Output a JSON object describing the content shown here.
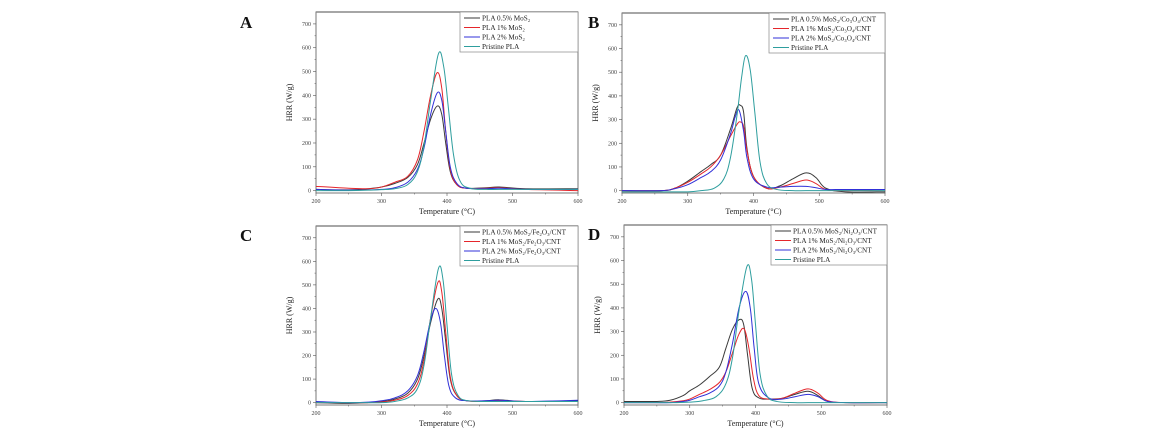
{
  "figure": {
    "x_axis_label": "Temperature (°C)",
    "y_axis_label": "HRR (W/g)"
  },
  "colors": {
    "black": "#3a3a3a",
    "red": "#e5262b",
    "blue": "#3030d8",
    "teal": "#2e9e9e"
  },
  "chart_data": [
    {
      "type": "line",
      "panel": "A",
      "title": "A",
      "xlabel": "Temperature (°C)",
      "ylabel": "HRR (W/g)",
      "xlim": [
        200,
        600
      ],
      "ylim": [
        -10,
        750
      ],
      "xticks": [
        200,
        300,
        400,
        500,
        600
      ],
      "yticks": [
        0,
        100,
        200,
        300,
        400,
        500,
        600,
        700
      ],
      "grid": false,
      "legend_position": "top-right",
      "series": [
        {
          "name": "PLA 0.5% MoS₂",
          "color": "black",
          "x": [
            200,
            250,
            280,
            300,
            320,
            340,
            355,
            365,
            375,
            385,
            392,
            398,
            405,
            415,
            430,
            460,
            480,
            520,
            600
          ],
          "y": [
            5,
            3,
            8,
            15,
            30,
            55,
            110,
            200,
            300,
            355,
            320,
            200,
            80,
            25,
            10,
            12,
            15,
            8,
            8
          ]
        },
        {
          "name": "PLA 1% MoS₂",
          "color": "red",
          "x": [
            200,
            250,
            280,
            300,
            320,
            340,
            355,
            365,
            375,
            385,
            392,
            398,
            405,
            415,
            430,
            460,
            480,
            520,
            600
          ],
          "y": [
            18,
            10,
            8,
            15,
            35,
            60,
            130,
            250,
            400,
            495,
            430,
            250,
            90,
            25,
            10,
            10,
            12,
            5,
            0
          ]
        },
        {
          "name": "PLA 2% MoS₂",
          "color": "blue",
          "x": [
            200,
            250,
            280,
            300,
            320,
            340,
            355,
            365,
            375,
            385,
            392,
            398,
            405,
            415,
            430,
            460,
            480,
            520,
            600
          ],
          "y": [
            5,
            2,
            3,
            5,
            12,
            35,
            90,
            180,
            320,
            410,
            380,
            250,
            100,
            30,
            10,
            8,
            10,
            5,
            5
          ]
        },
        {
          "name": "Pristine PLA",
          "color": "teal",
          "x": [
            200,
            250,
            280,
            300,
            320,
            340,
            355,
            365,
            375,
            387,
            395,
            402,
            410,
            420,
            435,
            460,
            480,
            520,
            600
          ],
          "y": [
            0,
            0,
            2,
            4,
            8,
            25,
            80,
            190,
            380,
            575,
            520,
            350,
            150,
            40,
            10,
            5,
            5,
            5,
            5
          ]
        }
      ]
    },
    {
      "type": "line",
      "panel": "B",
      "title": "B",
      "xlabel": "Temperature (°C)",
      "ylabel": "HRR (W/g)",
      "xlim": [
        200,
        600
      ],
      "ylim": [
        -10,
        750
      ],
      "xticks": [
        200,
        300,
        400,
        500,
        600
      ],
      "yticks": [
        0,
        100,
        200,
        300,
        400,
        500,
        600,
        700
      ],
      "grid": false,
      "legend_position": "top-right",
      "series": [
        {
          "name": "PLA 0.5% MoS₂/Co₃O₄/CNT",
          "color": "black",
          "x": [
            200,
            260,
            280,
            300,
            320,
            335,
            350,
            365,
            375,
            380,
            385,
            390,
            400,
            420,
            440,
            460,
            480,
            495,
            510,
            540,
            600
          ],
          "y": [
            0,
            0,
            10,
            40,
            80,
            110,
            150,
            260,
            350,
            360,
            330,
            180,
            60,
            10,
            20,
            50,
            75,
            55,
            10,
            -5,
            -5
          ]
        },
        {
          "name": "PLA 1% MoS₂/Co₃O₄/CNT",
          "color": "red",
          "x": [
            200,
            260,
            280,
            300,
            320,
            335,
            350,
            365,
            375,
            380,
            385,
            390,
            400,
            420,
            440,
            460,
            480,
            495,
            510,
            540,
            600
          ],
          "y": [
            0,
            0,
            10,
            35,
            70,
            100,
            150,
            230,
            280,
            290,
            270,
            170,
            60,
            10,
            15,
            30,
            45,
            30,
            5,
            0,
            5
          ]
        },
        {
          "name": "PLA 2% MoS₂/Co₃O₄/CNT",
          "color": "blue",
          "x": [
            200,
            260,
            280,
            300,
            320,
            335,
            350,
            365,
            372,
            378,
            385,
            390,
            400,
            420,
            440,
            460,
            480,
            495,
            510,
            540,
            600
          ],
          "y": [
            0,
            0,
            8,
            25,
            55,
            80,
            130,
            240,
            310,
            340,
            250,
            140,
            50,
            15,
            15,
            18,
            18,
            12,
            5,
            5,
            5
          ]
        },
        {
          "name": "Pristine PLA",
          "color": "teal",
          "x": [
            200,
            260,
            300,
            320,
            340,
            355,
            365,
            375,
            382,
            388,
            395,
            402,
            410,
            420,
            435,
            460,
            480,
            520,
            600
          ],
          "y": [
            -5,
            -5,
            -5,
            0,
            10,
            50,
            140,
            320,
            480,
            570,
            510,
            330,
            120,
            30,
            5,
            0,
            0,
            0,
            0
          ]
        }
      ]
    },
    {
      "type": "line",
      "panel": "C",
      "title": "C",
      "xlabel": "Temperature (°C)",
      "ylabel": "HRR (W/g)",
      "xlim": [
        200,
        600
      ],
      "ylim": [
        -10,
        750
      ],
      "xticks": [
        200,
        300,
        400,
        500,
        600
      ],
      "yticks": [
        0,
        100,
        200,
        300,
        400,
        500,
        600,
        700
      ],
      "grid": false,
      "legend_position": "top-right",
      "series": [
        {
          "name": "PLA 0.5% MoS₂/Fe₂O₃/CNT",
          "color": "black",
          "x": [
            200,
            250,
            280,
            300,
            320,
            340,
            355,
            365,
            375,
            386,
            392,
            398,
            405,
            415,
            430,
            460,
            480,
            520,
            600
          ],
          "y": [
            0,
            -3,
            0,
            5,
            15,
            40,
            100,
            200,
            340,
            440,
            400,
            260,
            100,
            30,
            8,
            8,
            12,
            5,
            8
          ]
        },
        {
          "name": "PLA 1% MoS₂/Fe₂O₃/CNT",
          "color": "red",
          "x": [
            200,
            250,
            280,
            300,
            320,
            340,
            355,
            365,
            375,
            386,
            392,
            398,
            405,
            415,
            430,
            460,
            480,
            520,
            600
          ],
          "y": [
            0,
            0,
            0,
            3,
            10,
            30,
            80,
            180,
            360,
            510,
            470,
            300,
            110,
            30,
            8,
            5,
            8,
            5,
            5
          ]
        },
        {
          "name": "PLA 2% MoS₂/Fe₂O₃/CNT",
          "color": "blue",
          "x": [
            200,
            250,
            280,
            300,
            320,
            340,
            355,
            365,
            375,
            383,
            390,
            396,
            403,
            413,
            430,
            460,
            480,
            520,
            600
          ],
          "y": [
            5,
            0,
            2,
            8,
            20,
            50,
            115,
            220,
            350,
            400,
            340,
            200,
            70,
            20,
            8,
            8,
            10,
            5,
            10
          ]
        },
        {
          "name": "Pristine PLA",
          "color": "teal",
          "x": [
            200,
            250,
            280,
            300,
            320,
            340,
            355,
            365,
            375,
            387,
            394,
            400,
            407,
            417,
            432,
            460,
            480,
            520,
            600
          ],
          "y": [
            0,
            0,
            0,
            0,
            5,
            20,
            60,
            160,
            360,
            570,
            520,
            330,
            120,
            30,
            8,
            5,
            5,
            5,
            5
          ]
        }
      ]
    },
    {
      "type": "line",
      "panel": "D",
      "title": "D",
      "xlabel": "Temperature (°C)",
      "ylabel": "HRR (W/g)",
      "xlim": [
        200,
        600
      ],
      "ylim": [
        -10,
        750
      ],
      "xticks": [
        200,
        300,
        400,
        500,
        600
      ],
      "yticks": [
        0,
        100,
        200,
        300,
        400,
        500,
        600,
        700
      ],
      "grid": false,
      "legend_position": "top-right",
      "series": [
        {
          "name": "PLA 0.5% MoS₂/Ni₂O₃/CNT",
          "color": "black",
          "x": [
            200,
            250,
            270,
            290,
            300,
            315,
            330,
            345,
            355,
            365,
            375,
            382,
            388,
            395,
            405,
            420,
            440,
            460,
            480,
            495,
            510,
            540,
            600
          ],
          "y": [
            5,
            5,
            10,
            30,
            50,
            75,
            110,
            150,
            230,
            310,
            350,
            330,
            200,
            60,
            20,
            15,
            18,
            35,
            48,
            30,
            5,
            0,
            0
          ]
        },
        {
          "name": "PLA 1% MoS₂/Ni₂O₃/CNT",
          "color": "red",
          "x": [
            200,
            250,
            270,
            290,
            300,
            315,
            330,
            345,
            355,
            365,
            375,
            383,
            390,
            397,
            405,
            420,
            440,
            460,
            480,
            495,
            510,
            540,
            600
          ],
          "y": [
            0,
            0,
            2,
            8,
            15,
            35,
            55,
            85,
            130,
            210,
            290,
            310,
            230,
            100,
            30,
            15,
            18,
            40,
            58,
            40,
            8,
            0,
            0
          ]
        },
        {
          "name": "PLA 2% MoS₂/Ni₂O₃/CNT",
          "color": "blue",
          "x": [
            200,
            250,
            270,
            290,
            300,
            315,
            330,
            345,
            355,
            365,
            375,
            385,
            392,
            398,
            405,
            420,
            440,
            460,
            480,
            495,
            510,
            540,
            600
          ],
          "y": [
            0,
            0,
            0,
            5,
            10,
            25,
            40,
            70,
            130,
            250,
            400,
            470,
            400,
            230,
            80,
            20,
            15,
            25,
            35,
            25,
            5,
            0,
            0
          ]
        },
        {
          "name": "Pristine PLA",
          "color": "teal",
          "x": [
            200,
            250,
            280,
            300,
            320,
            340,
            355,
            365,
            375,
            387,
            394,
            400,
            407,
            417,
            432,
            460,
            480,
            520,
            600
          ],
          "y": [
            0,
            0,
            0,
            2,
            8,
            25,
            80,
            190,
            390,
            575,
            520,
            330,
            120,
            30,
            5,
            0,
            0,
            0,
            0
          ]
        }
      ]
    }
  ]
}
